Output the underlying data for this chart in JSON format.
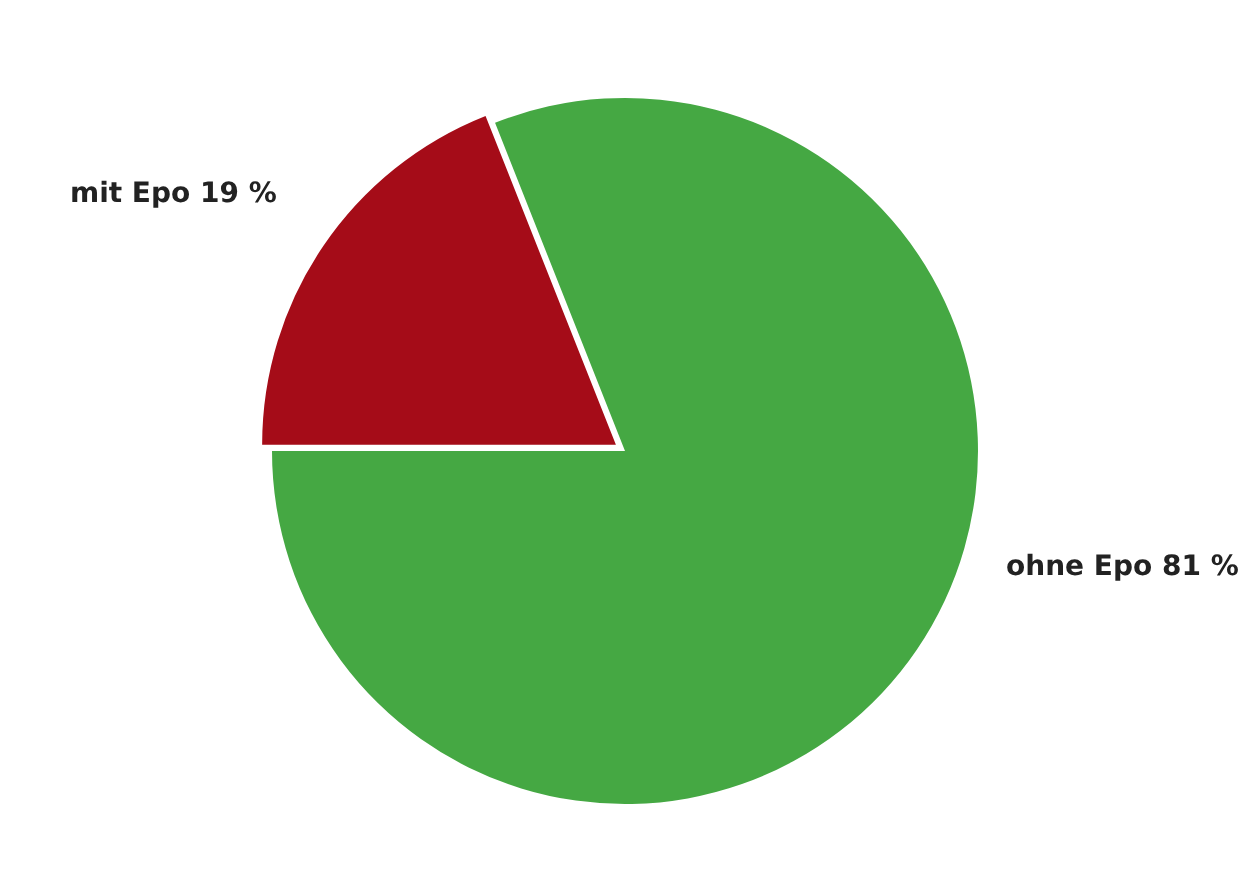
{
  "chart_data": {
    "type": "pie",
    "categories": [
      "mit Epo",
      "ohne Epo"
    ],
    "values": [
      19,
      81
    ],
    "colors": [
      "#a50c18",
      "#45a843"
    ],
    "value_labels": [
      "19 %",
      "81 %"
    ],
    "legend": false
  }
}
